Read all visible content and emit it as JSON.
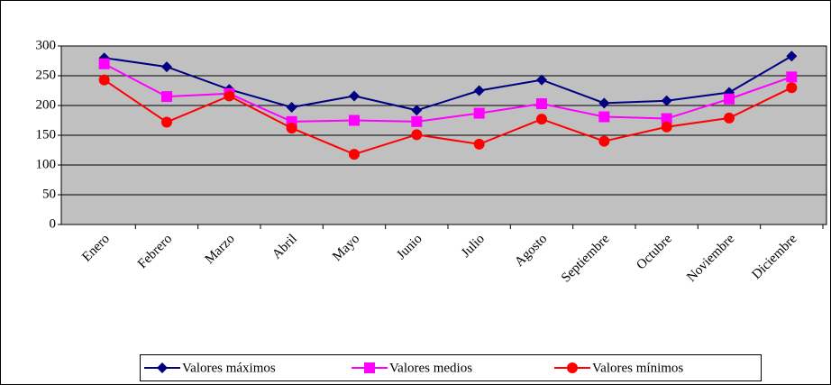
{
  "chart_data": {
    "type": "line",
    "categories": [
      "Enero",
      "Febrero",
      "Marzo",
      "Abril",
      "Mayo",
      "Junio",
      "Julio",
      "Agosto",
      "Septiembre",
      "Octubre",
      "Noviembre",
      "Diciembre"
    ],
    "series": [
      {
        "name": "Valores máximos",
        "color": "#000080",
        "marker": "diamond",
        "values": [
          280,
          265,
          227,
          197,
          216,
          192,
          225,
          243,
          204,
          208,
          222,
          283
        ]
      },
      {
        "name": "Valores  medios",
        "color": "#ff00ff",
        "marker": "square",
        "values": [
          270,
          215,
          220,
          173,
          175,
          173,
          187,
          203,
          181,
          178,
          211,
          248
        ]
      },
      {
        "name": "Valores mínimos",
        "color": "#ff0000",
        "marker": "circle",
        "values": [
          243,
          172,
          216,
          162,
          118,
          151,
          135,
          177,
          140,
          164,
          179,
          230
        ]
      }
    ],
    "ylim": [
      0,
      300
    ],
    "yticks": [
      0,
      50,
      100,
      150,
      200,
      250,
      300
    ],
    "grid": true,
    "legend": "bottom"
  }
}
